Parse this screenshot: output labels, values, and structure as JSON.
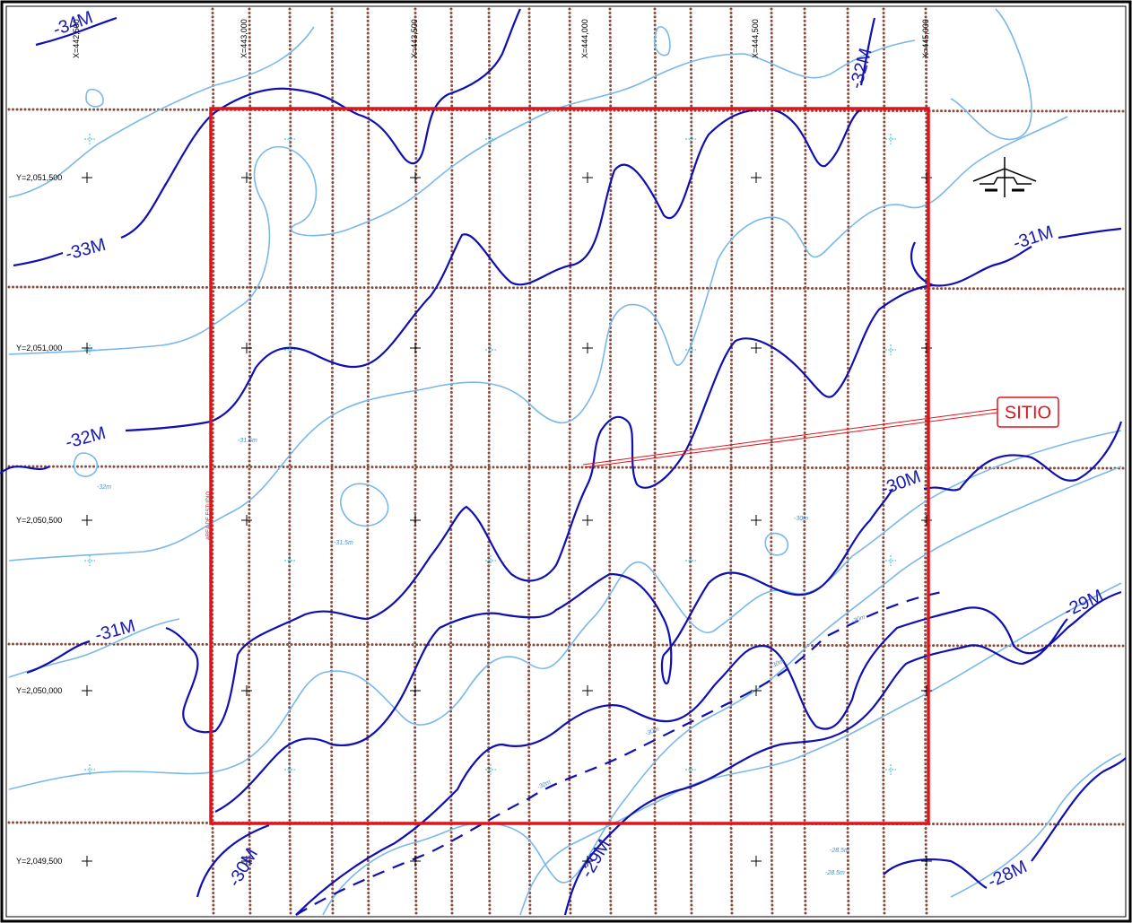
{
  "x_grid_labels": [
    "X=442,500",
    "X=443,000",
    "X=443,500",
    "X=444,000",
    "X=444,500",
    "X=445,000"
  ],
  "y_grid_labels": [
    "Y=2,051,500",
    "Y=2,051,000",
    "Y=2,050,500",
    "Y=2,050,000",
    "Y=2,049,500"
  ],
  "contour_labels": [
    "-34M",
    "-33M",
    "-32M",
    "-31M",
    "-32M",
    "-31M",
    "-30M",
    "-29M",
    "-30M",
    "-29M",
    "-28M"
  ],
  "minor_contour_labels": [
    "-31.5m",
    "-32m",
    "-31.5m",
    "-30m",
    "-30m",
    "-30m",
    "-30m",
    "-30m",
    "-28.5m",
    "-28.5m"
  ],
  "site_label": "SITIO",
  "area_label": "AREA DE ESTUDIO"
}
